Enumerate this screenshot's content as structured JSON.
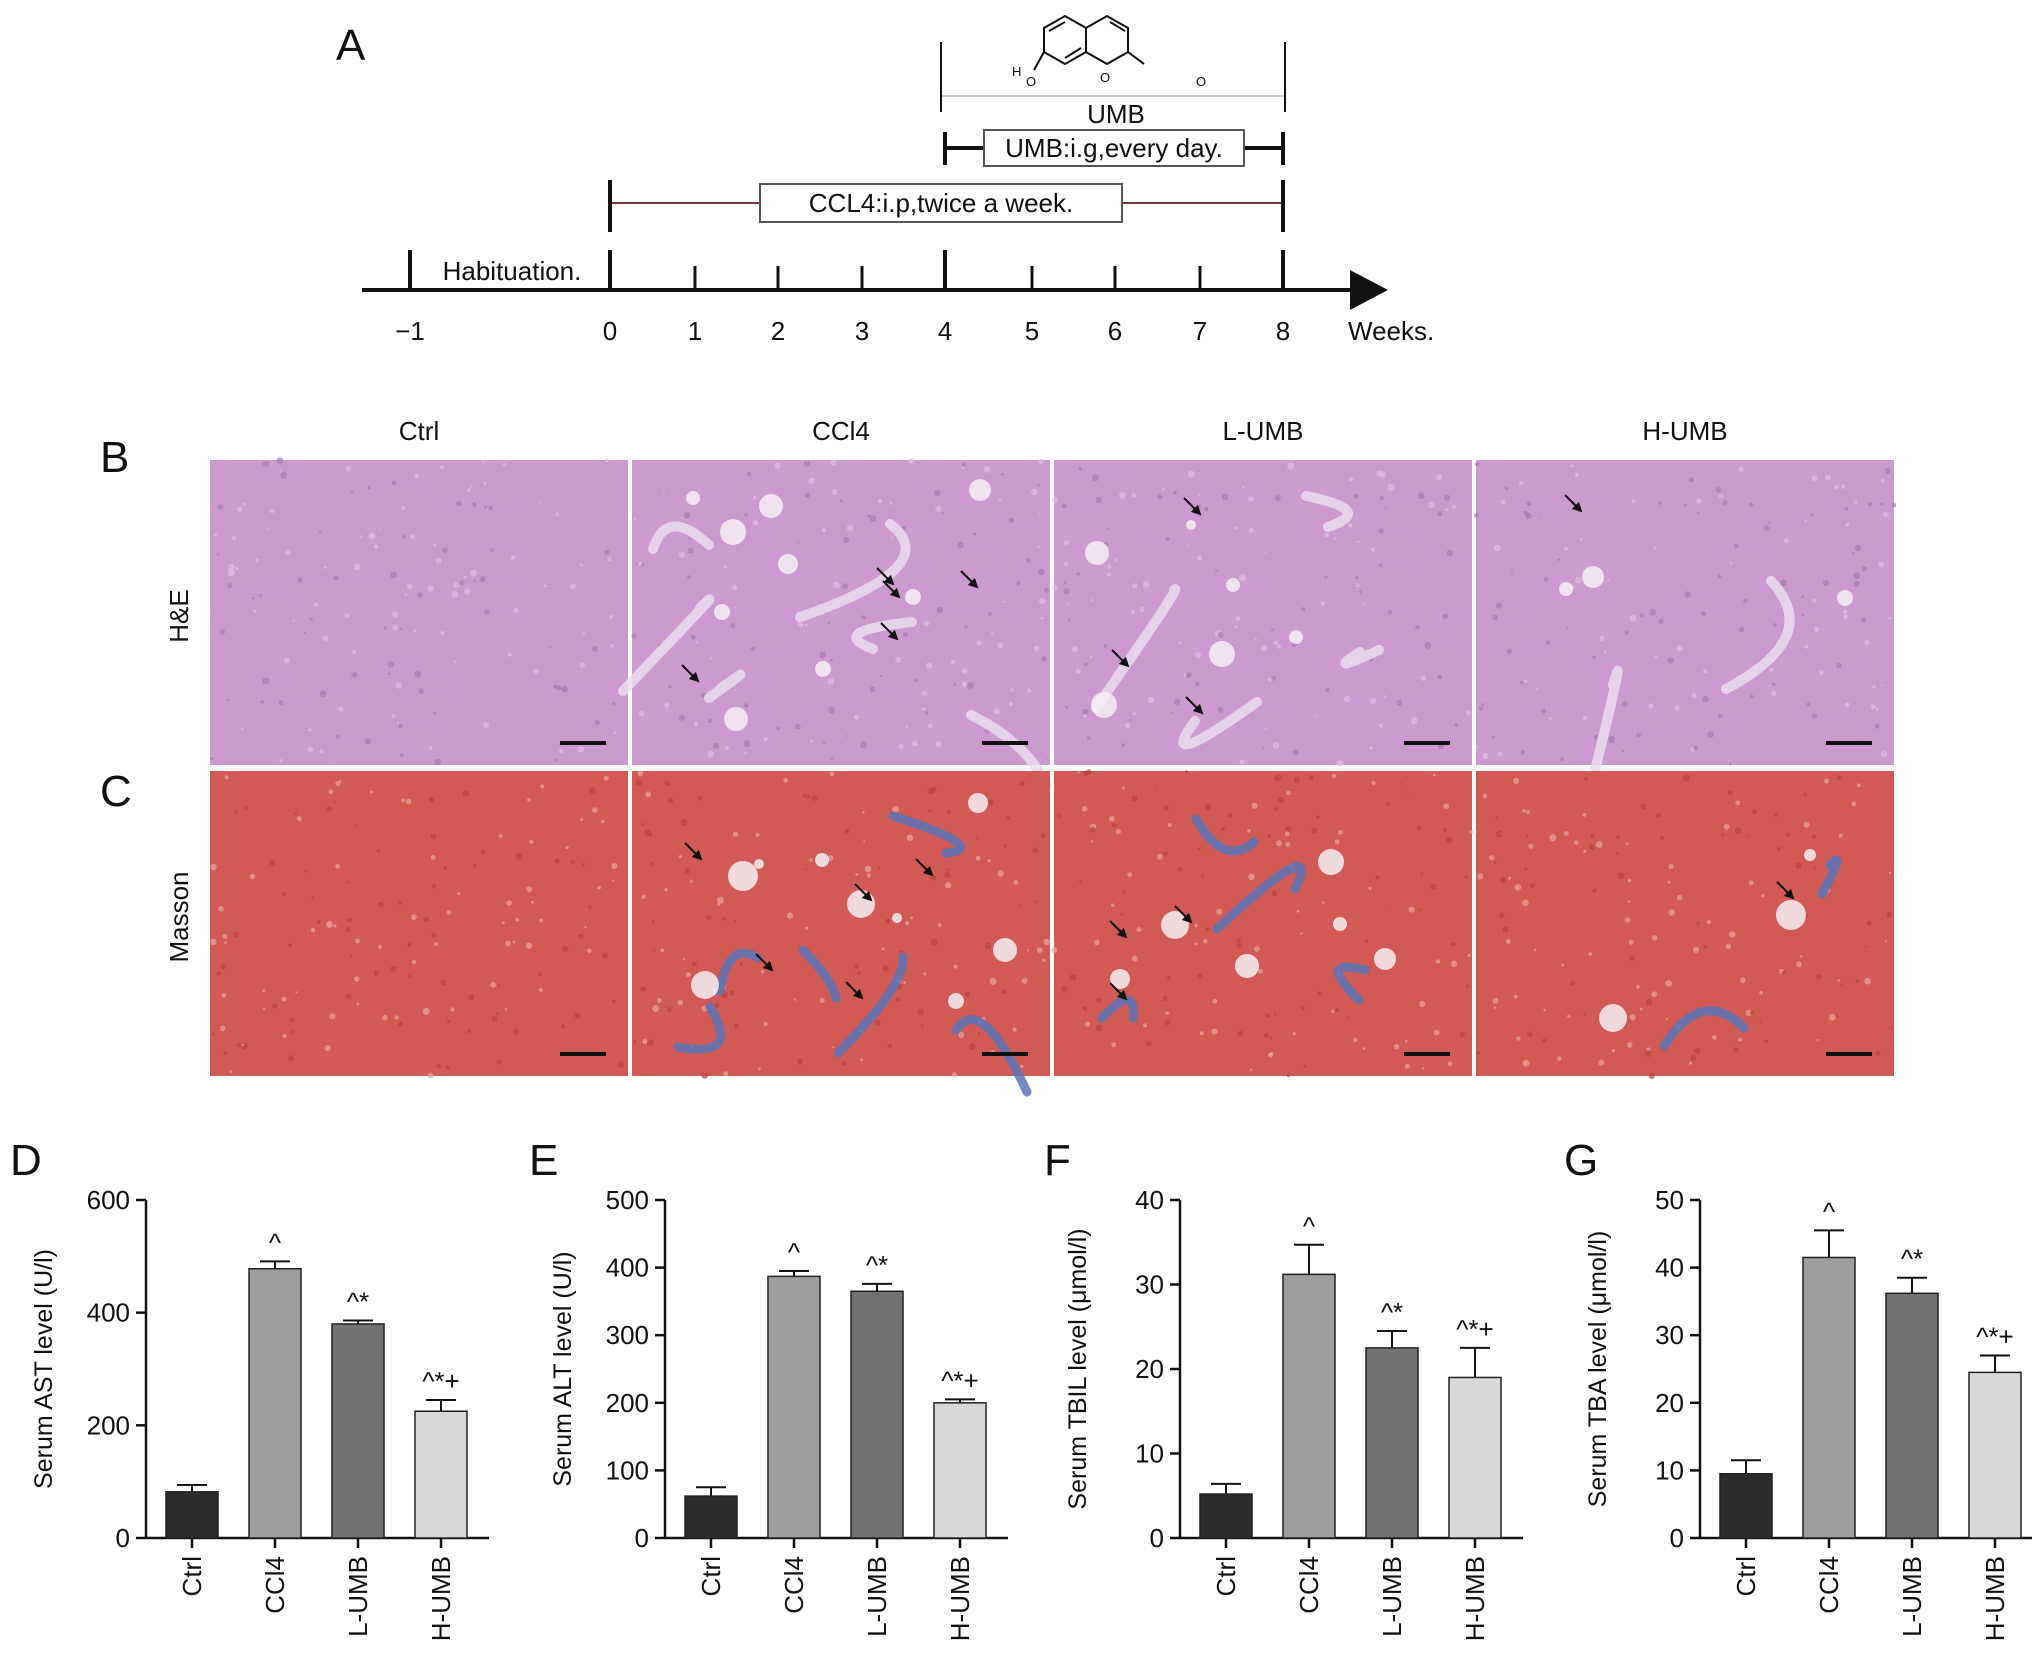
{
  "panel_a": {
    "letter": "A",
    "umb_label": "UMB",
    "umb_regimen": "UMB:i.g,every day.",
    "ccl4_regimen": "CCL4:i.p,twice a week.",
    "habituation": "Habituation.",
    "axis_unit": "Weeks.",
    "ticks": [
      "−1",
      "0",
      "1",
      "2",
      "3",
      "4",
      "5",
      "6",
      "7",
      "8"
    ],
    "structure_labels": {
      "h": "H",
      "o1": "O",
      "o2": "O",
      "o3": "O"
    }
  },
  "histology": {
    "letters": {
      "he": "B",
      "masson": "C"
    },
    "row_labels": {
      "he": "H&E",
      "masson": "Masson"
    },
    "groups": [
      "Ctrl",
      "CCl4",
      "L-UMB",
      "H-UMB"
    ],
    "colors": {
      "he_base": "#cc9ad0",
      "masson_base": "#d25a55",
      "collagen": "#5a74b8"
    }
  },
  "chart_data": [
    {
      "type": "bar",
      "letter": "D",
      "categories": [
        "Ctrl",
        "CCl4",
        "L-UMB",
        "H-UMB"
      ],
      "values": [
        82,
        478,
        380,
        225
      ],
      "errors": [
        12,
        13,
        6,
        20
      ],
      "annotations": [
        "",
        "^",
        "^*",
        "^*+"
      ],
      "ylabel": "Serum AST level (U/l)",
      "ylim": [
        0,
        600
      ],
      "yticks": [
        0,
        200,
        400,
        600
      ]
    },
    {
      "type": "bar",
      "letter": "E",
      "categories": [
        "Ctrl",
        "CCl4",
        "L-UMB",
        "H-UMB"
      ],
      "values": [
        62,
        387,
        365,
        200
      ],
      "errors": [
        13,
        8,
        11,
        5
      ],
      "annotations": [
        "",
        "^",
        "^*",
        "^*+"
      ],
      "ylabel": "Serum ALT level (U/l)",
      "ylim": [
        0,
        500
      ],
      "yticks": [
        0,
        100,
        200,
        300,
        400,
        500
      ]
    },
    {
      "type": "bar",
      "letter": "F",
      "categories": [
        "Ctrl",
        "CCl4",
        "L-UMB",
        "H-UMB"
      ],
      "values": [
        5.2,
        31.2,
        22.5,
        19
      ],
      "errors": [
        1.2,
        3.5,
        2.0,
        3.5
      ],
      "annotations": [
        "",
        "^",
        "^*",
        "^*+"
      ],
      "ylabel": "Serum TBIL level (μmol/l)",
      "ylim": [
        0,
        40
      ],
      "yticks": [
        0,
        10,
        20,
        30,
        40
      ]
    },
    {
      "type": "bar",
      "letter": "G",
      "categories": [
        "Ctrl",
        "CCl4",
        "L-UMB",
        "H-UMB"
      ],
      "values": [
        9.5,
        41.5,
        36.2,
        24.5
      ],
      "errors": [
        2.0,
        4.0,
        2.3,
        2.5
      ],
      "annotations": [
        "",
        "^",
        "^*",
        "^*+"
      ],
      "ylabel": "Serum TBA level (μmol/l)",
      "ylim": [
        0,
        50
      ],
      "yticks": [
        0,
        10,
        20,
        30,
        40,
        50
      ]
    }
  ],
  "bar_colors": [
    "#2c2c2c",
    "#9e9e9e",
    "#727272",
    "#d8d8d8"
  ]
}
